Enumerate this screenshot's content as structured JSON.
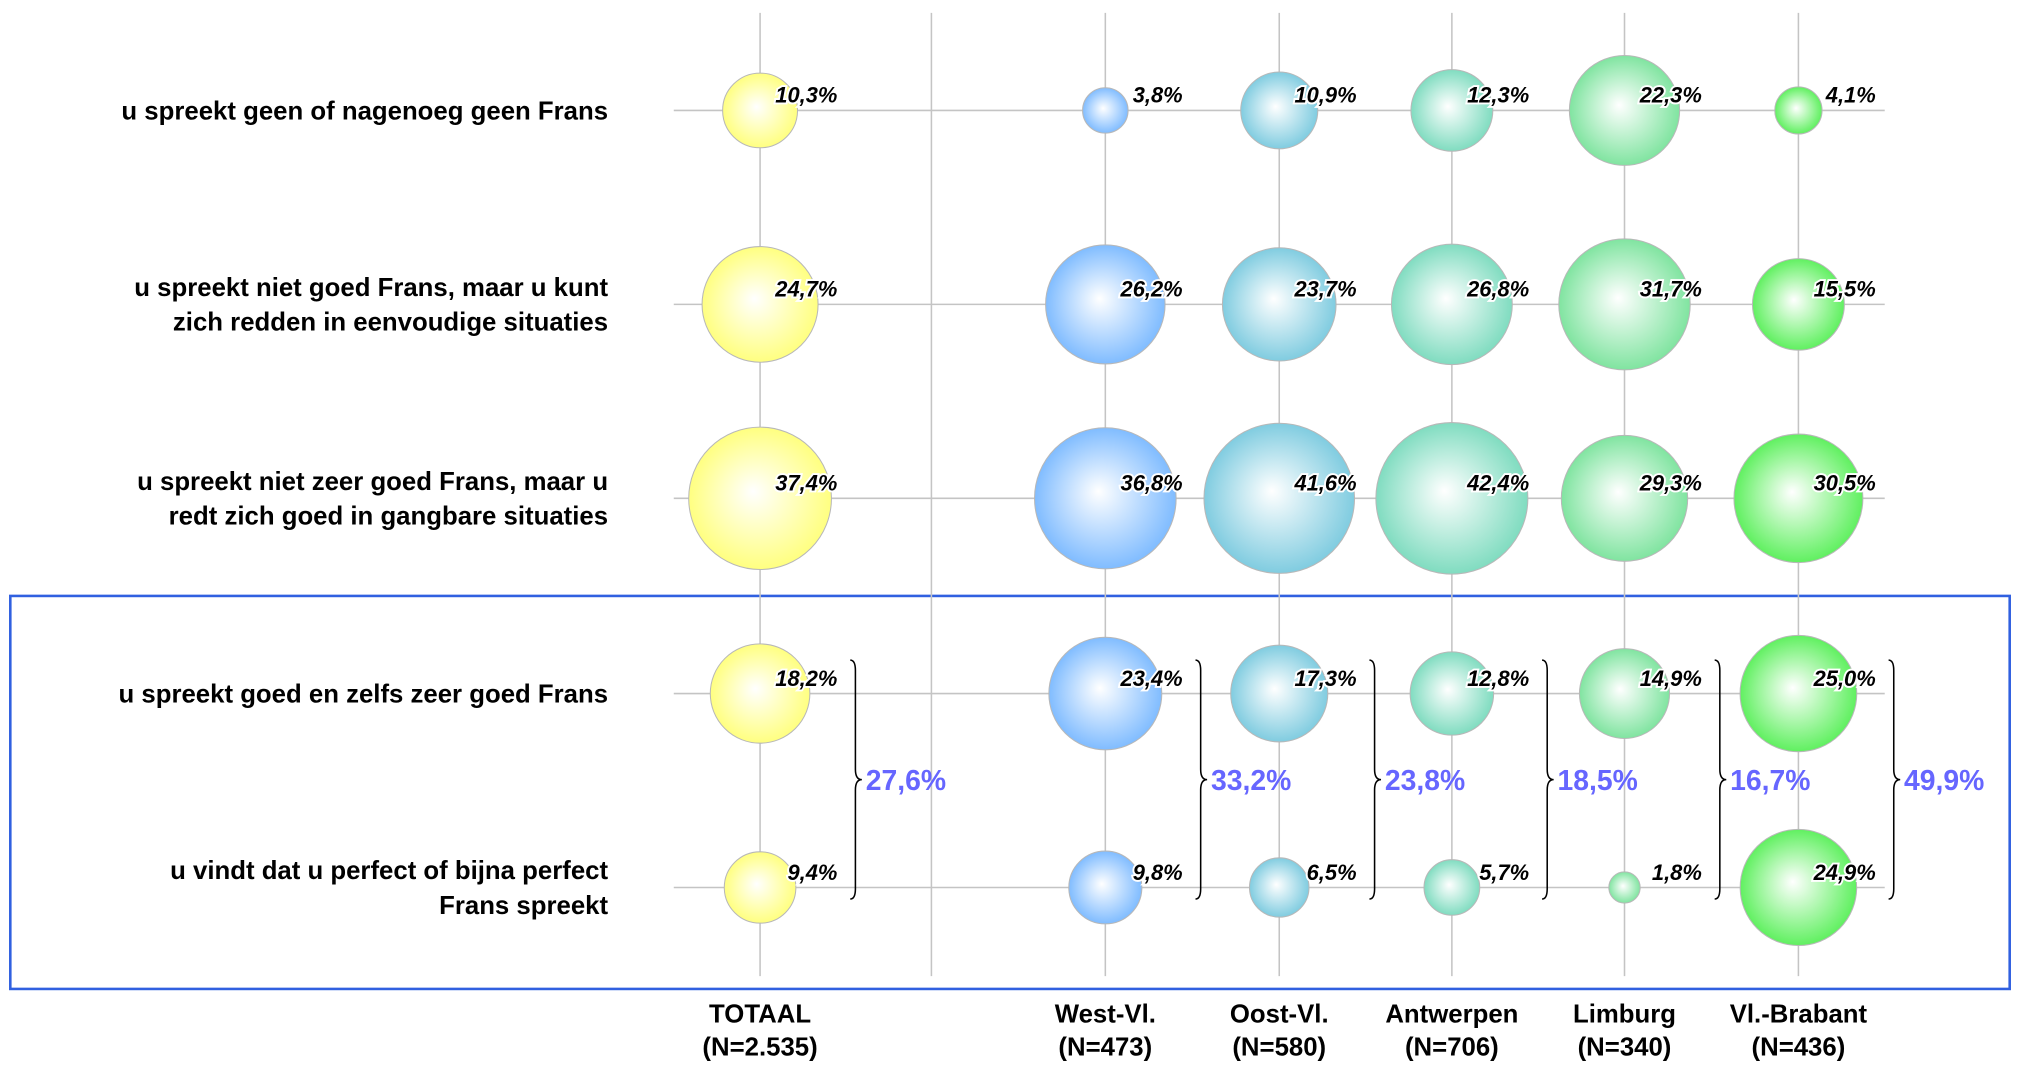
{
  "chart_data": {
    "type": "bubble",
    "rows": [
      [
        "u spreekt geen of nagenoeg geen Frans"
      ],
      [
        "u spreekt niet goed Frans, maar u kunt",
        "zich redden in eenvoudige situaties"
      ],
      [
        "u spreekt niet zeer goed Frans, maar u",
        "redt zich goed in gangbare situaties"
      ],
      [
        "u spreekt goed en zelfs zeer goed Frans"
      ],
      [
        "u vindt dat u perfect of bijna perfect",
        "Frans spreekt"
      ]
    ],
    "series": [
      {
        "name": "TOTAAL",
        "sample": "(N=2.535)",
        "color": "#ffff80",
        "values": [
          10.3,
          24.7,
          37.4,
          18.2,
          9.4
        ],
        "value_labels": [
          "10,3%",
          "24,7%",
          "37,4%",
          "18,2%",
          "9,4%"
        ],
        "combined": 27.6,
        "combined_label": "27,6%"
      },
      {
        "name": "West-Vl.",
        "sample": "(N=473)",
        "color": "#80bcff",
        "values": [
          3.8,
          26.2,
          36.8,
          23.4,
          9.8
        ],
        "value_labels": [
          "3,8%",
          "26,2%",
          "36,8%",
          "23,4%",
          "9,8%"
        ],
        "combined": 33.2,
        "combined_label": "33,2%"
      },
      {
        "name": "Oost-Vl.",
        "sample": "(N=580)",
        "color": "#80cce0",
        "values": [
          10.9,
          23.7,
          41.6,
          17.3,
          6.5
        ],
        "value_labels": [
          "10,9%",
          "23,7%",
          "41,6%",
          "17,3%",
          "6,5%"
        ],
        "combined": 23.8,
        "combined_label": "23,8%"
      },
      {
        "name": "Antwerpen",
        "sample": "(N=706)",
        "color": "#80dcc0",
        "values": [
          12.3,
          26.8,
          42.4,
          12.8,
          5.7
        ],
        "value_labels": [
          "12,3%",
          "26,8%",
          "42,4%",
          "12,8%",
          "5,7%"
        ],
        "combined": 18.5,
        "combined_label": "18,5%"
      },
      {
        "name": "Limburg",
        "sample": "(N=340)",
        "color": "#80e4a0",
        "values": [
          22.3,
          31.7,
          29.3,
          14.9,
          1.8
        ],
        "value_labels": [
          "22,3%",
          "31,7%",
          "29,3%",
          "14,9%",
          "1,8%"
        ],
        "combined": 16.7,
        "combined_label": "16,7%"
      },
      {
        "name": "Vl.-Brabant",
        "sample": "(N=436)",
        "color": "#60f060",
        "values": [
          4.1,
          15.5,
          30.5,
          25.0,
          24.9
        ],
        "value_labels": [
          "4,1%",
          "15,5%",
          "30,5%",
          "25,0%",
          "24,9%"
        ],
        "combined": 49.9,
        "combined_label": "49,9%"
      }
    ]
  }
}
